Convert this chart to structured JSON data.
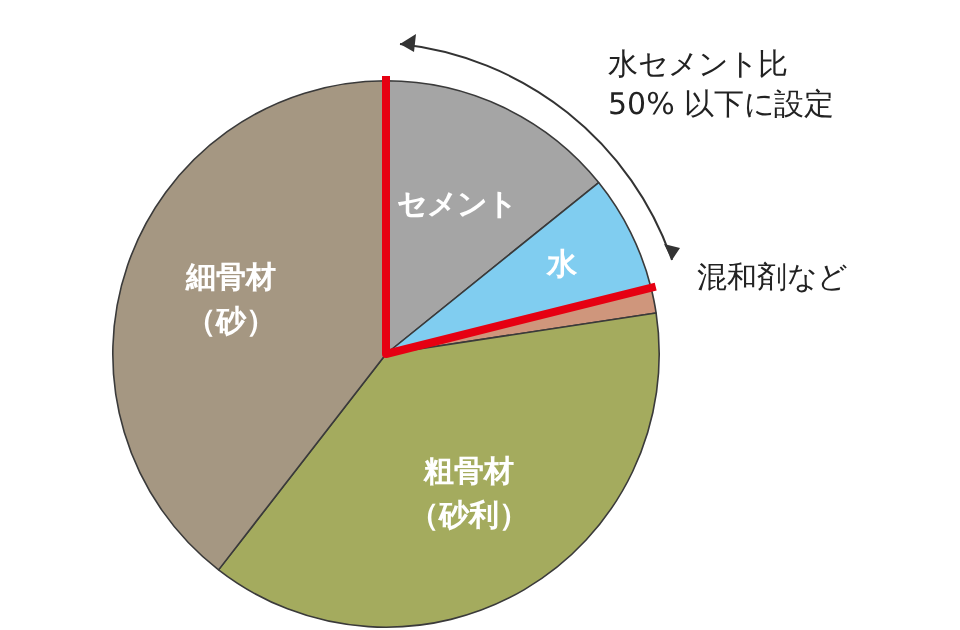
{
  "chart_data": {
    "type": "pie",
    "categories": [
      "セメント",
      "水",
      "混和剤など",
      "粗骨材（砂利）",
      "細骨材（砂）"
    ],
    "values": [
      14.2,
      6.9,
      1.5,
      37.9,
      39.5
    ],
    "colors": [
      "#a5a5a5",
      "#80cdf0",
      "#cf967c",
      "#a4ab5e",
      "#a59782"
    ],
    "annotations": [
      "水セメント比\n50% 以下に設定"
    ]
  }
}
